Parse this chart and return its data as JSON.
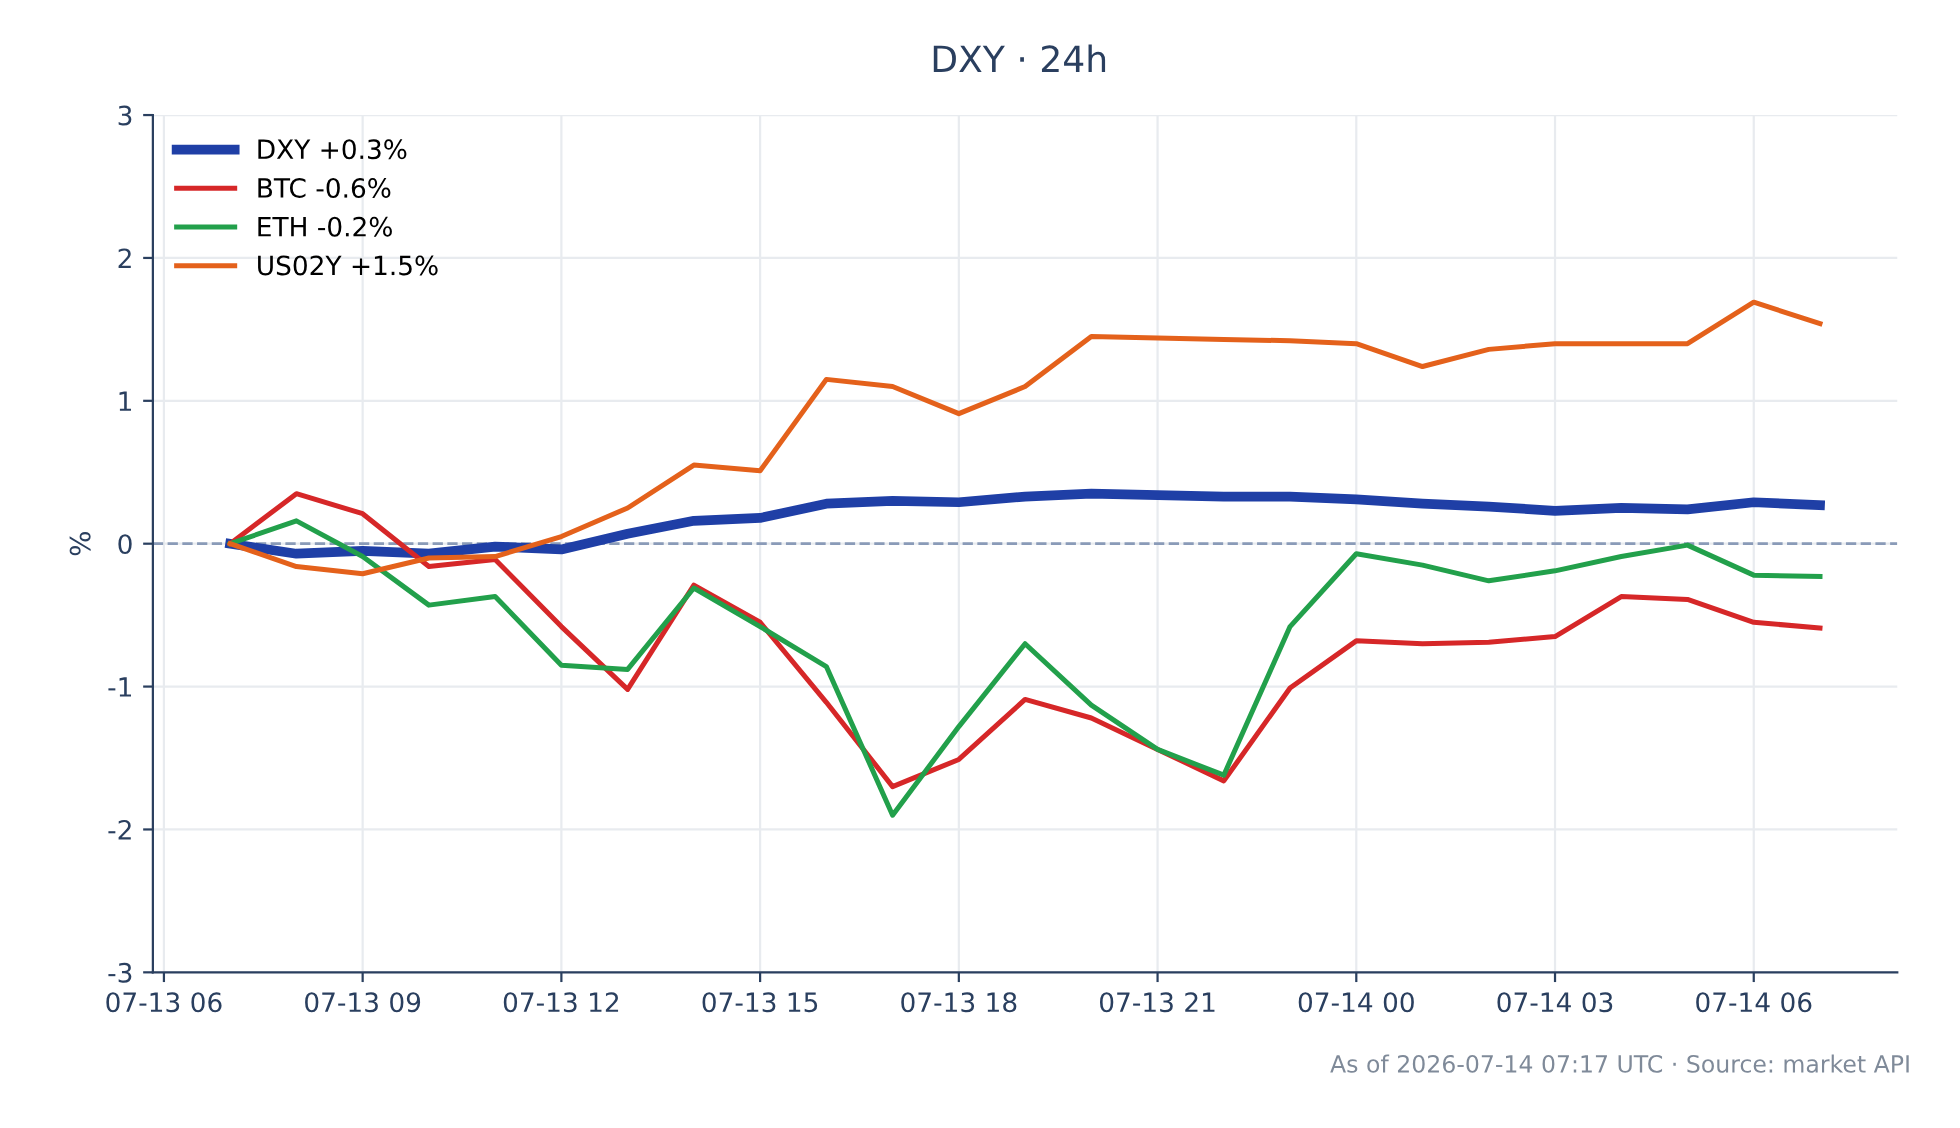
{
  "chart_data": {
    "type": "line",
    "title": "DXY · 24h",
    "ylabel": "%",
    "x": [
      "2026-07-13T07:00",
      "2026-07-13T08:00",
      "2026-07-13T09:00",
      "2026-07-13T10:00",
      "2026-07-13T11:00",
      "2026-07-13T12:00",
      "2026-07-13T13:00",
      "2026-07-13T14:00",
      "2026-07-13T15:00",
      "2026-07-13T16:00",
      "2026-07-13T17:00",
      "2026-07-13T18:00",
      "2026-07-13T19:00",
      "2026-07-13T20:00",
      "2026-07-13T21:00",
      "2026-07-13T22:00",
      "2026-07-13T23:00",
      "2026-07-14T00:00",
      "2026-07-14T01:00",
      "2026-07-14T02:00",
      "2026-07-14T03:00",
      "2026-07-14T04:00",
      "2026-07-14T05:00",
      "2026-07-14T06:00",
      "2026-07-14T07:00"
    ],
    "series": [
      {
        "name": "DXY +0.3%",
        "color": "#1f3fa6",
        "values": [
          0,
          -0.07,
          -0.05,
          -0.07,
          -0.02,
          -0.04,
          0.07,
          0.16,
          0.18,
          0.28,
          0.3,
          0.29,
          0.33,
          0.35,
          0.34,
          0.33,
          0.33,
          0.31,
          0.28,
          0.26,
          0.23,
          0.25,
          0.24,
          0.29,
          0.27
        ]
      },
      {
        "name": "BTC -0.6%",
        "color": "#d62728",
        "values": [
          0,
          0.35,
          0.21,
          -0.16,
          -0.11,
          -0.58,
          -1.02,
          -0.29,
          -0.55,
          -1.11,
          -1.7,
          -1.51,
          -1.09,
          -1.22,
          -1.44,
          -1.66,
          -1.01,
          -0.68,
          -0.7,
          -0.69,
          -0.65,
          -0.37,
          -0.39,
          -0.55,
          -0.59
        ]
      },
      {
        "name": "ETH -0.2%",
        "color": "#22a04b",
        "values": [
          0,
          0.16,
          -0.09,
          -0.43,
          -0.37,
          -0.85,
          -0.88,
          -0.31,
          -0.58,
          -0.86,
          -1.9,
          -1.28,
          -0.7,
          -1.13,
          -1.44,
          -1.62,
          -0.58,
          -0.07,
          -0.15,
          -0.26,
          -0.19,
          -0.09,
          -0.01,
          -0.22,
          -0.23
        ]
      },
      {
        "name": "US02Y +1.5%",
        "color": "#e4611b",
        "values": [
          0,
          -0.16,
          -0.21,
          -0.1,
          -0.09,
          0.05,
          0.25,
          0.55,
          0.51,
          1.15,
          1.1,
          0.91,
          1.1,
          1.45,
          1.44,
          1.43,
          1.42,
          1.4,
          1.24,
          1.36,
          1.4,
          1.4,
          1.4,
          1.69,
          1.54
        ]
      }
    ],
    "xlim": [
      "2026-07-13T05:50",
      "2026-07-14T08:10"
    ],
    "xticks": [
      {
        "value": "2026-07-13T06:00",
        "label": "07-13 06"
      },
      {
        "value": "2026-07-13T09:00",
        "label": "07-13 09"
      },
      {
        "value": "2026-07-13T12:00",
        "label": "07-13 12"
      },
      {
        "value": "2026-07-13T15:00",
        "label": "07-13 15"
      },
      {
        "value": "2026-07-13T18:00",
        "label": "07-13 18"
      },
      {
        "value": "2026-07-13T21:00",
        "label": "07-13 21"
      },
      {
        "value": "2026-07-14T00:00",
        "label": "07-14 00"
      },
      {
        "value": "2026-07-14T03:00",
        "label": "07-14 03"
      },
      {
        "value": "2026-07-14T06:00",
        "label": "07-14 06"
      }
    ],
    "ylim": [
      -3,
      3
    ],
    "yticks": [
      -3,
      -2,
      -1,
      0,
      1,
      2,
      3
    ],
    "ref_lines": [
      {
        "axis": "y",
        "value": 0,
        "color": "#8a9bb8",
        "line_style": "dashed"
      }
    ],
    "grid": true,
    "legend": "top left",
    "marker": "none",
    "line_style": "solid",
    "annotations": [
      "As of 2026-07-14 07:17 UTC · Source: market API"
    ]
  }
}
